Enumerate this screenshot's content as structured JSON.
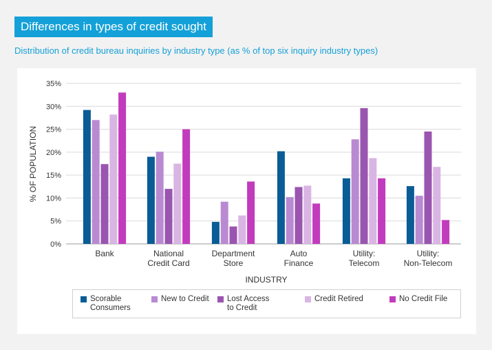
{
  "header": {
    "title": "Differences in types of credit sought",
    "subtitle": "Distribution of credit bureau inquiries by industry type (as % of top six inquiry industry types)"
  },
  "colors": {
    "title_bg": "#14a0d8",
    "subtitle": "#14a0d8",
    "series": [
      "#0a5c96",
      "#b98ad2",
      "#9a55b0",
      "#d9b5e4",
      "#c23bbd"
    ]
  },
  "chart_data": {
    "type": "bar",
    "xlabel": "INDUSTRY",
    "ylabel": "% OF POPULATION",
    "ylim": [
      0,
      35
    ],
    "yticks": [
      "0%",
      "5%",
      "10%",
      "15%",
      "20%",
      "25%",
      "30%",
      "35%"
    ],
    "ytick_values": [
      0,
      5,
      10,
      15,
      20,
      25,
      30,
      35
    ],
    "grid": true,
    "legend_position": "bottom",
    "categories": [
      [
        "Bank"
      ],
      [
        "National",
        "Credit Card"
      ],
      [
        "Department",
        "Store"
      ],
      [
        "Auto",
        "Finance"
      ],
      [
        "Utility:",
        "Telecom"
      ],
      [
        "Utility:",
        "Non-Telecom"
      ]
    ],
    "series": [
      {
        "name": "Scorable Consumers",
        "name_lines": [
          "Scorable",
          "Consumers"
        ],
        "values": [
          29.2,
          19.0,
          4.8,
          20.2,
          14.3,
          12.6
        ]
      },
      {
        "name": "New to Credit",
        "name_lines": [
          "New to Credit"
        ],
        "values": [
          27.0,
          20.1,
          9.2,
          10.2,
          22.8,
          10.5
        ]
      },
      {
        "name": "Lost Access to Credit",
        "name_lines": [
          "Lost Access",
          "to Credit"
        ],
        "values": [
          17.4,
          12.0,
          3.8,
          12.4,
          29.6,
          24.5
        ]
      },
      {
        "name": "Credit Retired",
        "name_lines": [
          "Credit Retired"
        ],
        "values": [
          28.2,
          17.5,
          6.2,
          12.7,
          18.7,
          16.8
        ]
      },
      {
        "name": "No Credit File",
        "name_lines": [
          "No Credit File"
        ],
        "values": [
          33.0,
          25.0,
          13.6,
          8.8,
          14.3,
          5.2
        ]
      }
    ]
  }
}
